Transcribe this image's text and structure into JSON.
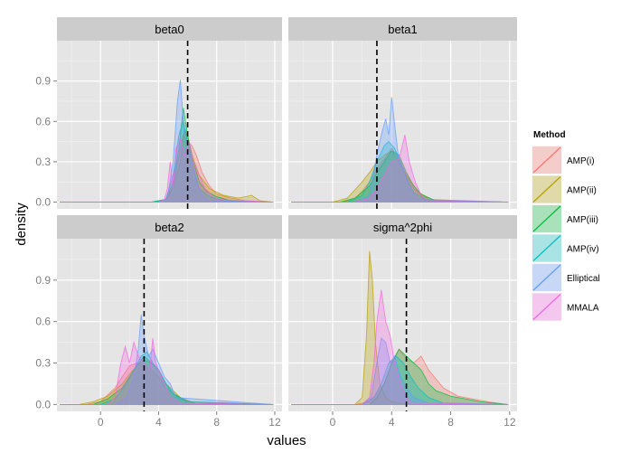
{
  "chart_data": {
    "type": "area",
    "title": "",
    "xlabel": "values",
    "ylabel": "density",
    "xlim": [
      -3,
      12.5
    ],
    "ylim": [
      -0.05,
      1.2
    ],
    "x_ticks": [
      0,
      4,
      8,
      12
    ],
    "x_tick_labels": [
      "0",
      "4",
      "8",
      "12"
    ],
    "y_ticks": [
      0.0,
      0.3,
      0.6,
      0.9
    ],
    "y_tick_labels": [
      "0.0",
      "0.3",
      "0.6",
      "0.9"
    ],
    "legend": {
      "title": "Method",
      "position": "right",
      "entries": [
        {
          "label": "AMP(i)",
          "color": "#F8766D"
        },
        {
          "label": "AMP(ii)",
          "color": "#B79F00"
        },
        {
          "label": "AMP(iii)",
          "color": "#00BA38"
        },
        {
          "label": "AMP(iv)",
          "color": "#00BFC4"
        },
        {
          "label": "Elliptical",
          "color": "#619CFF"
        },
        {
          "label": "MMALA",
          "color": "#F564E3"
        }
      ]
    },
    "facets": [
      {
        "title": "beta0",
        "true_value": 6,
        "series": [
          {
            "name": "AMP(i)",
            "x": [
              -2.8,
              3.5,
              4.5,
              5.0,
              5.4,
              5.7,
              6.0,
              6.3,
              6.6,
              7.0,
              7.5,
              8.0,
              9.0,
              10.0,
              11.9
            ],
            "y": [
              0,
              0,
              0.02,
              0.12,
              0.35,
              0.5,
              0.45,
              0.42,
              0.35,
              0.22,
              0.12,
              0.06,
              0.03,
              0.01,
              0
            ]
          },
          {
            "name": "AMP(ii)",
            "x": [
              -2.8,
              3.5,
              4.5,
              5.0,
              5.5,
              5.8,
              6.0,
              6.3,
              6.8,
              7.5,
              8.5,
              9.5,
              10.4,
              11.0,
              11.9
            ],
            "y": [
              0,
              0,
              0.02,
              0.1,
              0.3,
              0.55,
              0.48,
              0.35,
              0.2,
              0.1,
              0.05,
              0.03,
              0.05,
              0.01,
              0
            ]
          },
          {
            "name": "AMP(iii)",
            "x": [
              -2.8,
              3.5,
              4.5,
              5.0,
              5.4,
              5.7,
              6.0,
              6.4,
              6.8,
              7.3,
              8.0,
              9.0,
              11.9
            ],
            "y": [
              0,
              0,
              0.02,
              0.15,
              0.4,
              0.7,
              0.5,
              0.3,
              0.15,
              0.08,
              0.04,
              0.01,
              0
            ]
          },
          {
            "name": "AMP(iv)",
            "x": [
              -2.8,
              3.5,
              4.5,
              5.0,
              5.4,
              5.7,
              6.0,
              6.4,
              6.8,
              7.5,
              8.5,
              11.9
            ],
            "y": [
              0,
              0,
              0.02,
              0.2,
              0.5,
              0.6,
              0.45,
              0.25,
              0.1,
              0.04,
              0.01,
              0
            ]
          },
          {
            "name": "Elliptical",
            "x": [
              -2.8,
              4.0,
              4.6,
              5.0,
              5.3,
              5.5,
              5.7,
              6.0,
              6.3,
              6.6,
              7.0,
              7.5,
              11.9
            ],
            "y": [
              0,
              0,
              0.03,
              0.3,
              0.75,
              0.91,
              0.6,
              0.4,
              0.3,
              0.15,
              0.05,
              0.01,
              0
            ]
          },
          {
            "name": "MMALA",
            "x": [
              -2.8,
              4.0,
              4.4,
              4.6,
              4.8,
              5.0,
              5.2,
              5.5,
              5.8,
              6.1,
              6.4,
              6.8,
              7.2,
              8.0,
              11.9
            ],
            "y": [
              0,
              0,
              0.02,
              0.1,
              0.3,
              0.1,
              0.4,
              0.48,
              0.35,
              0.45,
              0.3,
              0.2,
              0.1,
              0.02,
              0
            ]
          }
        ]
      },
      {
        "title": "beta1",
        "true_value": 3,
        "series": [
          {
            "name": "AMP(i)",
            "x": [
              -2.8,
              0.5,
              1.5,
              2.0,
              2.5,
              3.0,
              3.5,
              4.0,
              4.5,
              5.0,
              5.5,
              6.0,
              7.0,
              11.9
            ],
            "y": [
              0,
              0,
              0.02,
              0.08,
              0.15,
              0.25,
              0.32,
              0.4,
              0.32,
              0.2,
              0.1,
              0.05,
              0.01,
              0
            ]
          },
          {
            "name": "AMP(ii)",
            "x": [
              -2.8,
              0.0,
              1.0,
              2.0,
              2.5,
              3.0,
              3.5,
              4.0,
              4.5,
              5.0,
              5.8,
              6.5,
              11.9
            ],
            "y": [
              0,
              0,
              0.03,
              0.15,
              0.22,
              0.3,
              0.35,
              0.38,
              0.3,
              0.2,
              0.08,
              0.02,
              0
            ]
          },
          {
            "name": "AMP(iii)",
            "x": [
              -2.8,
              0.5,
              1.5,
              2.5,
              3.0,
              3.5,
              4.0,
              4.5,
              5.0,
              5.5,
              6.0,
              7.0,
              11.9
            ],
            "y": [
              0,
              0,
              0.03,
              0.12,
              0.22,
              0.3,
              0.38,
              0.35,
              0.22,
              0.12,
              0.06,
              0.01,
              0
            ]
          },
          {
            "name": "AMP(iv)",
            "x": [
              -2.8,
              1.0,
              2.0,
              2.5,
              3.0,
              3.5,
              3.8,
              4.2,
              4.6,
              5.0,
              5.5,
              6.5,
              11.9
            ],
            "y": [
              0,
              0,
              0.05,
              0.15,
              0.3,
              0.42,
              0.45,
              0.4,
              0.3,
              0.18,
              0.07,
              0.01,
              0
            ]
          },
          {
            "name": "Elliptical",
            "x": [
              -2.8,
              1.5,
              2.5,
              3.0,
              3.3,
              3.6,
              3.8,
              4.0,
              4.2,
              4.5,
              4.8,
              5.2,
              5.8,
              11.9
            ],
            "y": [
              0,
              0,
              0.05,
              0.35,
              0.5,
              0.62,
              0.5,
              0.78,
              0.58,
              0.3,
              0.25,
              0.1,
              0.02,
              0
            ]
          },
          {
            "name": "MMALA",
            "x": [
              -2.8,
              1.5,
              2.5,
              3.0,
              3.5,
              4.0,
              4.5,
              4.9,
              5.2,
              5.6,
              6.0,
              6.5,
              11.9
            ],
            "y": [
              0,
              0,
              0.03,
              0.1,
              0.2,
              0.3,
              0.32,
              0.5,
              0.3,
              0.15,
              0.05,
              0.01,
              0
            ]
          }
        ]
      },
      {
        "title": "beta2",
        "true_value": 3,
        "series": [
          {
            "name": "AMP(i)",
            "x": [
              -2.8,
              -1.0,
              0.0,
              1.0,
              1.5,
              2.0,
              2.5,
              3.0,
              3.5,
              4.0,
              4.5,
              5.5,
              6.5,
              11.9
            ],
            "y": [
              0,
              0,
              0.02,
              0.12,
              0.2,
              0.28,
              0.3,
              0.28,
              0.25,
              0.2,
              0.12,
              0.04,
              0.01,
              0
            ]
          },
          {
            "name": "AMP(ii)",
            "x": [
              -2.8,
              -1.5,
              -0.5,
              0.5,
              1.5,
              2.0,
              2.5,
              3.0,
              3.5,
              4.0,
              4.5,
              5.5,
              6.5,
              11.9
            ],
            "y": [
              0,
              0,
              0.02,
              0.06,
              0.15,
              0.22,
              0.28,
              0.32,
              0.3,
              0.25,
              0.15,
              0.05,
              0.01,
              0
            ]
          },
          {
            "name": "AMP(iii)",
            "x": [
              -2.8,
              -0.5,
              0.5,
              1.5,
              2.0,
              2.5,
              3.0,
              3.5,
              4.0,
              4.5,
              5.0,
              6.0,
              11.9
            ],
            "y": [
              0,
              0,
              0.04,
              0.12,
              0.2,
              0.28,
              0.35,
              0.3,
              0.25,
              0.15,
              0.08,
              0.02,
              0
            ]
          },
          {
            "name": "AMP(iv)",
            "x": [
              -2.8,
              0.0,
              1.0,
              1.8,
              2.3,
              2.8,
              3.2,
              3.6,
              4.0,
              4.5,
              5.0,
              6.0,
              11.9
            ],
            "y": [
              0,
              0,
              0.04,
              0.15,
              0.25,
              0.35,
              0.38,
              0.3,
              0.25,
              0.15,
              0.08,
              0.01,
              0
            ]
          },
          {
            "name": "Elliptical",
            "x": [
              -2.8,
              1.0,
              1.8,
              2.3,
              2.6,
              2.8,
              3.0,
              3.3,
              3.6,
              4.0,
              4.4,
              4.8,
              5.2,
              11.9
            ],
            "y": [
              0,
              0,
              0.05,
              0.2,
              0.4,
              0.65,
              0.5,
              0.35,
              0.4,
              0.3,
              0.2,
              0.15,
              0.05,
              0
            ]
          },
          {
            "name": "MMALA",
            "x": [
              -2.8,
              0.5,
              1.0,
              1.4,
              1.7,
              2.0,
              2.3,
              2.6,
              3.0,
              3.4,
              3.6,
              3.8,
              4.2,
              4.8,
              5.5,
              11.9
            ],
            "y": [
              0,
              0,
              0.05,
              0.3,
              0.42,
              0.3,
              0.45,
              0.35,
              0.3,
              0.25,
              0.48,
              0.3,
              0.2,
              0.05,
              0.01,
              0
            ]
          }
        ]
      },
      {
        "title": "sigma^2phi",
        "true_value": 5,
        "series": [
          {
            "name": "AMP(i)",
            "x": [
              -2.8,
              1.5,
              2.5,
              3.0,
              3.5,
              4.0,
              4.5,
              5.0,
              5.5,
              6.0,
              6.5,
              7.5,
              8.5,
              10.5,
              11.9
            ],
            "y": [
              0,
              0,
              0.02,
              0.08,
              0.15,
              0.3,
              0.4,
              0.33,
              0.3,
              0.35,
              0.25,
              0.12,
              0.06,
              0.02,
              0
            ]
          },
          {
            "name": "AMP(ii)",
            "x": [
              -2.8,
              1.5,
              2.0,
              2.3,
              2.5,
              2.7,
              2.9,
              3.2,
              3.6,
              4.0,
              4.5,
              5.0,
              11.9
            ],
            "y": [
              0,
              0,
              0.05,
              0.5,
              1.11,
              0.9,
              0.45,
              0.15,
              0.05,
              0.02,
              0.01,
              0,
              0
            ]
          },
          {
            "name": "AMP(iii)",
            "x": [
              -2.8,
              2.5,
              3.0,
              3.5,
              4.0,
              4.5,
              5.0,
              5.5,
              6.0,
              6.5,
              7.0,
              8.0,
              9.0,
              10.0,
              11.9
            ],
            "y": [
              0,
              0,
              0.05,
              0.15,
              0.3,
              0.4,
              0.35,
              0.3,
              0.25,
              0.15,
              0.1,
              0.06,
              0.04,
              0.02,
              0
            ]
          },
          {
            "name": "AMP(iv)",
            "x": [
              -2.8,
              2.0,
              2.8,
              3.3,
              3.8,
              4.3,
              4.8,
              5.3,
              5.8,
              6.5,
              7.5,
              11.9
            ],
            "y": [
              0,
              0,
              0.05,
              0.15,
              0.3,
              0.35,
              0.3,
              0.2,
              0.12,
              0.05,
              0.01,
              0
            ]
          },
          {
            "name": "Elliptical",
            "x": [
              -2.8,
              2.0,
              2.6,
              3.0,
              3.3,
              3.6,
              3.9,
              4.2,
              4.6,
              5.0,
              5.5,
              6.5,
              11.9
            ],
            "y": [
              0,
              0,
              0.05,
              0.3,
              0.48,
              0.45,
              0.3,
              0.35,
              0.2,
              0.12,
              0.05,
              0.01,
              0
            ]
          },
          {
            "name": "MMALA",
            "x": [
              -2.8,
              2.0,
              2.5,
              2.8,
              3.0,
              3.3,
              3.6,
              3.9,
              4.2,
              4.6,
              5.0,
              5.5,
              11.9
            ],
            "y": [
              0,
              0,
              0.05,
              0.3,
              0.6,
              0.83,
              0.6,
              0.5,
              0.3,
              0.15,
              0.05,
              0.01,
              0
            ]
          }
        ]
      }
    ]
  }
}
